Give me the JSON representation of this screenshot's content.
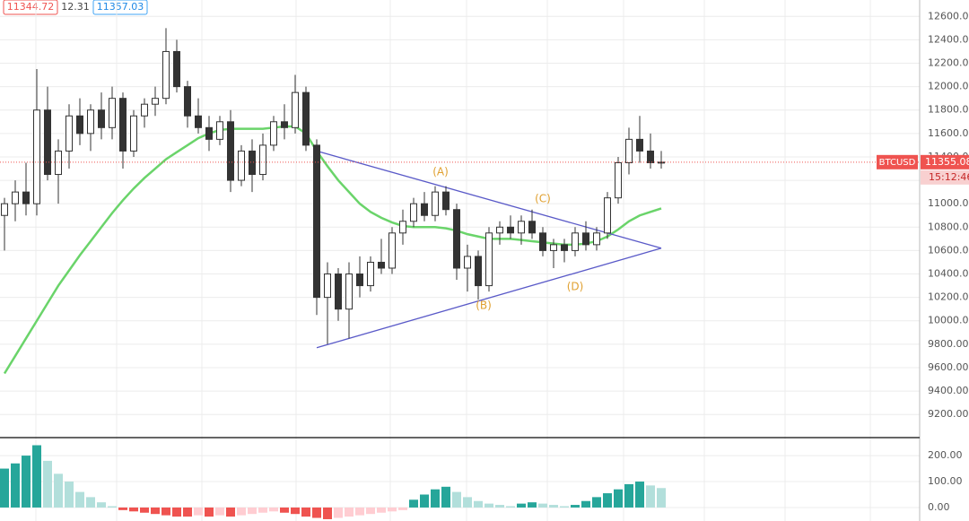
{
  "chart_data": {
    "type": "candlestick",
    "header_values": [
      "11344.72",
      "12.31",
      "11357.03"
    ],
    "symbol": "BTCUSD",
    "last_price": {
      "value": 11355.08,
      "label": "11355.08"
    },
    "countdown": "15:12:46",
    "categories": [
      null,
      null,
      null,
      null,
      null,
      null,
      null,
      null,
      null,
      null,
      null,
      null,
      null,
      null,
      null,
      null,
      null,
      null,
      null,
      null,
      null,
      null,
      null,
      null,
      null,
      null,
      null,
      null,
      null,
      null,
      null,
      null,
      null,
      null,
      null,
      null,
      null,
      null,
      null,
      null,
      null,
      null,
      null,
      null,
      null,
      null,
      null,
      null,
      null,
      null,
      null,
      null,
      null,
      null,
      null,
      null,
      null,
      null,
      null,
      null,
      null,
      null
    ],
    "open": [
      10900,
      11000,
      11100,
      11000,
      11800,
      11250,
      11450,
      11750,
      11600,
      11800,
      11650,
      11900,
      11450,
      11750,
      11850,
      11900,
      12300,
      12000,
      11750,
      11650,
      11550,
      11700,
      11200,
      11450,
      11250,
      11500,
      11700,
      11650,
      11950,
      11500,
      10200,
      10400,
      10100,
      10400,
      10300,
      10500,
      10450,
      10750,
      10850,
      11000,
      10900,
      11100,
      10950,
      10450,
      10550,
      10300,
      10750,
      10800,
      10750,
      10850,
      10750,
      10600,
      10650,
      10600,
      10750,
      10650,
      10750,
      11050,
      11350,
      11550,
      11450,
      11350
    ],
    "high": [
      11050,
      11200,
      11350,
      12150,
      12000,
      11550,
      11850,
      11900,
      11850,
      11950,
      12000,
      11950,
      11800,
      11900,
      12000,
      12500,
      12400,
      12050,
      11900,
      11750,
      11750,
      11800,
      11500,
      11550,
      11600,
      11750,
      11850,
      12100,
      12000,
      11550,
      10500,
      10450,
      10500,
      10550,
      10550,
      10700,
      10800,
      10950,
      11050,
      11100,
      11150,
      11150,
      11000,
      10650,
      10600,
      10800,
      10850,
      10900,
      10900,
      10950,
      10800,
      10700,
      10700,
      10800,
      10850,
      10800,
      11100,
      11400,
      11650,
      11750,
      11600,
      11450
    ],
    "low": [
      10600,
      10850,
      10900,
      10900,
      11200,
      11000,
      11300,
      11500,
      11450,
      11550,
      11550,
      11300,
      11400,
      11650,
      11750,
      11850,
      11950,
      11650,
      11600,
      11450,
      11500,
      11100,
      11150,
      11100,
      11200,
      11450,
      11550,
      11600,
      11450,
      10050,
      9800,
      10000,
      9850,
      10200,
      10250,
      10400,
      10400,
      10650,
      10800,
      10850,
      10850,
      10900,
      10350,
      10250,
      10180,
      10250,
      10650,
      10700,
      10650,
      10700,
      10550,
      10450,
      10500,
      10550,
      10600,
      10600,
      10700,
      11000,
      11250,
      11350,
      11300,
      11300
    ],
    "close": [
      11000,
      11100,
      11000,
      11800,
      11250,
      11450,
      11750,
      11600,
      11800,
      11650,
      11900,
      11450,
      11750,
      11850,
      11900,
      12300,
      12000,
      11750,
      11650,
      11550,
      11700,
      11200,
      11450,
      11250,
      11500,
      11700,
      11650,
      11950,
      11500,
      10200,
      10400,
      10100,
      10400,
      10300,
      10500,
      10450,
      10750,
      10850,
      11000,
      10900,
      11100,
      10950,
      10450,
      10550,
      10300,
      10750,
      10800,
      10750,
      10850,
      10750,
      10600,
      10650,
      10600,
      10750,
      10650,
      10750,
      11050,
      11350,
      11550,
      11450,
      11350,
      11355
    ],
    "ma": {
      "color": "#6ad46a",
      "values": [
        9550,
        9700,
        9850,
        10000,
        10150,
        10300,
        10430,
        10560,
        10680,
        10800,
        10920,
        11030,
        11130,
        11220,
        11300,
        11380,
        11440,
        11500,
        11560,
        11600,
        11630,
        11640,
        11640,
        11640,
        11640,
        11650,
        11660,
        11660,
        11600,
        11450,
        11320,
        11200,
        11100,
        11000,
        10930,
        10880,
        10840,
        10810,
        10800,
        10800,
        10800,
        10790,
        10770,
        10740,
        10720,
        10700,
        10700,
        10700,
        10690,
        10680,
        10670,
        10660,
        10650,
        10650,
        10660,
        10680,
        10720,
        10780,
        10850,
        10900,
        10930,
        10960
      ]
    },
    "trendlines": {
      "color": "#5a5ac8",
      "lines": [
        [
          [
            29,
            9770
          ],
          [
            61,
            10620
          ]
        ],
        [
          [
            29,
            11450
          ],
          [
            61,
            10620
          ]
        ]
      ]
    },
    "annotations": [
      {
        "text": "(A)",
        "x": 40.5,
        "y": 11270
      },
      {
        "text": "(B)",
        "x": 44.5,
        "y": 10130
      },
      {
        "text": "(C)",
        "x": 50,
        "y": 11040
      },
      {
        "text": "(D)",
        "x": 53,
        "y": 10290
      }
    ],
    "ylim": [
      9010,
      12740
    ],
    "yticks": [
      {
        "value": 9200,
        "label": "9200.00"
      },
      {
        "value": 9400,
        "label": "9400.00"
      },
      {
        "value": 9600,
        "label": "9600.00"
      },
      {
        "value": 9800,
        "label": "9800.00"
      },
      {
        "value": 10000,
        "label": "10000.00"
      },
      {
        "value": 10200,
        "label": "10200.00"
      },
      {
        "value": 10400,
        "label": "10400.00"
      },
      {
        "value": 10600,
        "label": "10600.00"
      },
      {
        "value": 10800,
        "label": "10800.00"
      },
      {
        "value": 11000,
        "label": "11000.00"
      },
      {
        "value": 11200,
        "label": "11200.00"
      },
      {
        "value": 11400,
        "label": "11400.00"
      },
      {
        "value": 11600,
        "label": "11600.00"
      },
      {
        "value": 11800,
        "label": "11800.00"
      },
      {
        "value": 12000,
        "label": "12000.00"
      },
      {
        "value": 12200,
        "label": "12200.00"
      },
      {
        "value": 12400,
        "label": "12400.00"
      },
      {
        "value": 12600,
        "label": "12600.00"
      }
    ],
    "histogram": {
      "colors": [
        "#26a69a",
        "#b2dfdb",
        "#ef5350",
        "#ffcdd2"
      ],
      "values": [
        150,
        170,
        200,
        240,
        180,
        130,
        100,
        60,
        40,
        20,
        5,
        -10,
        -15,
        -20,
        -25,
        -30,
        -35,
        -35,
        -30,
        -35,
        -30,
        -35,
        -30,
        -25,
        -20,
        -15,
        -20,
        -25,
        -35,
        -40,
        -45,
        -40,
        -35,
        -30,
        -25,
        -20,
        -15,
        -10,
        30,
        50,
        70,
        80,
        60,
        40,
        25,
        15,
        10,
        5,
        15,
        20,
        15,
        10,
        5,
        10,
        25,
        40,
        55,
        70,
        90,
        100,
        85,
        75
      ],
      "ylim": [
        -52,
        266
      ],
      "yticks": [
        {
          "value": 0,
          "label": "0.00"
        },
        {
          "value": 100,
          "label": "100.00"
        },
        {
          "value": 200,
          "label": "200.00"
        }
      ]
    }
  }
}
